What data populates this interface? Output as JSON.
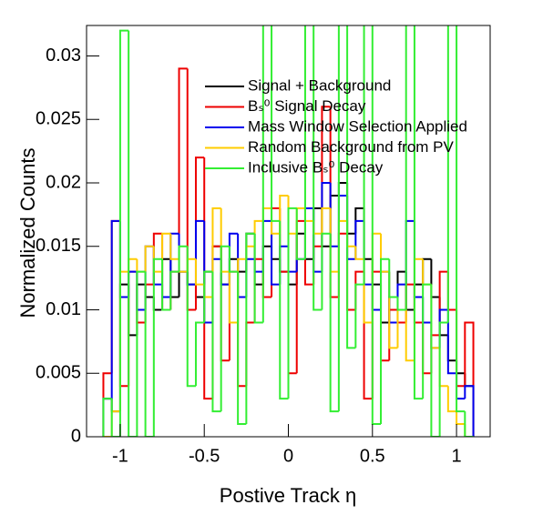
{
  "chart_data": {
    "type": "histogram",
    "xlabel": "Postive Track  η",
    "ylabel": "Normalized Counts",
    "bins": [
      -1.1,
      -1.05,
      -1,
      -0.95,
      -0.9,
      -0.85,
      -0.8,
      -0.75,
      -0.7,
      -0.65,
      -0.6,
      -0.55,
      -0.5,
      -0.45,
      -0.4,
      -0.35,
      -0.3,
      -0.25,
      -0.2,
      -0.15,
      -0.1,
      -0.05,
      0,
      0.05,
      0.1,
      0.15,
      0.2,
      0.25,
      0.3,
      0.35,
      0.4,
      0.45,
      0.5,
      0.55,
      0.6,
      0.65,
      0.7,
      0.75,
      0.8,
      0.85,
      0.9,
      0.95,
      1,
      1.05,
      1.1
    ],
    "series": [
      {
        "name": "Signal + Background",
        "color": "#000000",
        "values": [
          0.003,
          0.002,
          0.012,
          0.008,
          0.012,
          0.011,
          0.01,
          0.014,
          0.011,
          0.013,
          0.012,
          0.011,
          0.013,
          0.015,
          0.012,
          0.014,
          0.013,
          0.016,
          0.012,
          0.015,
          0.014,
          0.013,
          0.012,
          0.016,
          0.014,
          0.018,
          0.015,
          0.019,
          0.02,
          0.016,
          0.018,
          0.014,
          0.012,
          0.009,
          0.011,
          0.013,
          0.01,
          0.012,
          0.014,
          0.011,
          0.008,
          0.006,
          0.005,
          0.004
        ]
      },
      {
        "name": "Bₛ⁰ Signal Decay",
        "color": "#ee0000",
        "values": [
          0.005,
          0.017,
          0.004,
          0.013,
          0.009,
          0.012,
          0.016,
          0.01,
          0.013,
          0.029,
          0.01,
          0.022,
          0.003,
          0.015,
          0.006,
          0.013,
          0.004,
          0.009,
          0.014,
          0.011,
          0.018,
          0.013,
          0.005,
          0.017,
          0.012,
          0.015,
          0.026,
          0.011,
          0.016,
          0.01,
          0.013,
          0.003,
          0.013,
          0.006,
          0.01,
          0.009,
          0.012,
          0.009,
          0.005,
          0.008,
          0.013,
          0.01,
          0.004,
          0.009
        ]
      },
      {
        "name": "Mass Window Selection Applied",
        "color": "#0000ee",
        "values": [
          0.003,
          0.017,
          0.011,
          0.013,
          0.01,
          0.015,
          0.012,
          0.011,
          0.016,
          0.013,
          0.012,
          0.017,
          0.009,
          0.014,
          0.012,
          0.016,
          0.011,
          0.014,
          0.013,
          0.017,
          0.012,
          0.015,
          0.013,
          0.014,
          0.018,
          0.013,
          0.02,
          0.015,
          0.019,
          0.014,
          0.017,
          0.012,
          0.01,
          0.013,
          0.009,
          0.012,
          0.017,
          0.011,
          0.009,
          0.007,
          0.01,
          0.005,
          0.003,
          0.004
        ]
      },
      {
        "name": "Random Background from PV",
        "color": "#ffcc00",
        "values": [
          0,
          0.002,
          0.013,
          0.014,
          0.013,
          0.015,
          0.013,
          0.016,
          0.014,
          0.013,
          0.014,
          0.012,
          0.011,
          0.018,
          0.013,
          0.009,
          0.014,
          0.015,
          0.017,
          0.018,
          0.016,
          0.019,
          0.016,
          0.018,
          0.017,
          0.016,
          0.018,
          0.013,
          0.017,
          0.015,
          0.014,
          0.009,
          0.016,
          0.013,
          0.007,
          0.01,
          0.006,
          0.014,
          0.012,
          0.007,
          0.004,
          0.002,
          0.001,
          0
        ]
      },
      {
        "name": "Inclusive Bₛ⁰ Decay",
        "color": "#33ee33",
        "values": [
          0.003,
          0,
          0.032,
          0,
          0.013,
          0,
          0.014,
          0.01,
          0.013,
          0.015,
          0.004,
          0.009,
          0.013,
          0.002,
          0.015,
          0.013,
          0.001,
          0.016,
          0.009,
          0.034,
          0.017,
          0.003,
          0.018,
          0.014,
          0.034,
          0.01,
          0.016,
          0.002,
          0.034,
          0.007,
          0.012,
          0.034,
          0.001,
          0.014,
          0.011,
          0.01,
          0.034,
          0.003,
          0.012,
          0,
          0.009,
          0.034,
          0.002,
          0
        ]
      }
    ],
    "xlim": [
      -1.2,
      1.2
    ],
    "ylim": [
      0,
      0.0324
    ],
    "xticks": [
      -1,
      -0.5,
      0,
      0.5,
      1
    ],
    "yticks": [
      0,
      0.005,
      0.01,
      0.015,
      0.02,
      0.025,
      0.03
    ],
    "legend": "top"
  }
}
